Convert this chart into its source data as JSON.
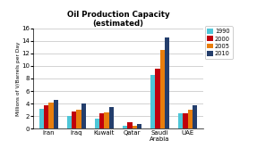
{
  "title": "Oil Production Capacity\n(estimated)",
  "ylabel": "Millions of V/Barrels per Day",
  "categories": [
    "Iran",
    "Iraq",
    "Kuwait",
    "Qatar",
    "Saudi\nArabia",
    "UAE"
  ],
  "years": [
    "1990",
    "2000",
    "2005",
    "2010"
  ],
  "values": {
    "1990": [
      3.2,
      2.0,
      1.6,
      0.5,
      8.5,
      2.5
    ],
    "2000": [
      3.8,
      2.7,
      2.5,
      1.0,
      9.5,
      2.4
    ],
    "2005": [
      4.1,
      3.0,
      2.6,
      0.5,
      12.5,
      3.0
    ],
    "2010": [
      4.6,
      4.0,
      3.4,
      0.7,
      14.5,
      3.8
    ]
  },
  "colors": {
    "1990": "#4EC6D8",
    "2000": "#C0000C",
    "2005": "#E87E0D",
    "2010": "#243E6C"
  },
  "ylim": [
    0,
    16
  ],
  "yticks": [
    0,
    2,
    4,
    6,
    8,
    10,
    12,
    14,
    16
  ],
  "background_color": "#FFFFFF",
  "grid_color": "#C0C0C0"
}
